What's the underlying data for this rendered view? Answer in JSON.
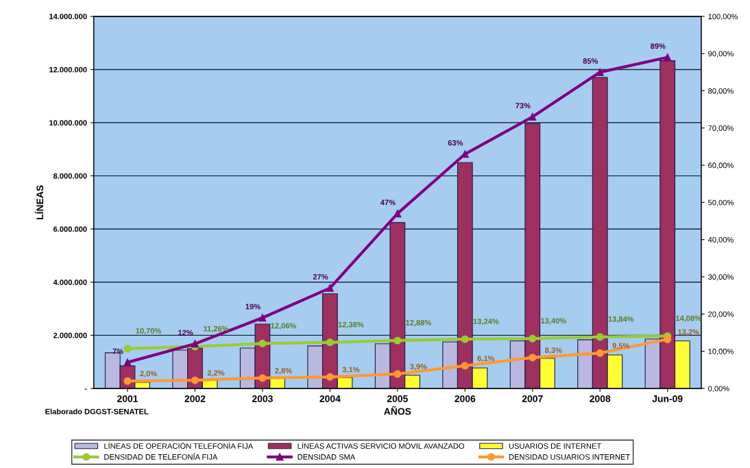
{
  "chart_data": {
    "type": "bar",
    "xlabel": "AÑOS",
    "ylabel": "LÍNEAS",
    "categories": [
      "2001",
      "2002",
      "2003",
      "2004",
      "2005",
      "2006",
      "2007",
      "2008",
      "Jun-09"
    ],
    "series": [
      {
        "name": "LÍNEAS DE OPERACIÓN TELEFONÍA FIJA",
        "color": "#b8b8e0",
        "values": [
          1340000,
          1440000,
          1520000,
          1600000,
          1680000,
          1750000,
          1790000,
          1830000,
          1860000
        ]
      },
      {
        "name": "LÍNEAS ACTIVAS SERVICIO MÓVIL AVANZADO",
        "color": "#9e3060",
        "values": [
          850000,
          1520000,
          2420000,
          3560000,
          6240000,
          8500000,
          9970000,
          11700000,
          12330000
        ]
      },
      {
        "name": "USUARIOS DE INTERNET",
        "color": "#ffff33",
        "values": [
          230000,
          310000,
          370000,
          410000,
          500000,
          770000,
          1130000,
          1260000,
          1790000
        ]
      },
      {
        "name": "DENSIDAD DE TELEFONÍA FIJA",
        "type": "line",
        "axis": "y2",
        "marker": "circle",
        "color": "#99cc33",
        "values": [
          10.7,
          11.26,
          12.06,
          12.38,
          12.88,
          13.24,
          13.4,
          13.84,
          14.08
        ],
        "value_labels": [
          "10,70%",
          "11,26%",
          "12,06%",
          "12,38%",
          "12,88%",
          "13,24%",
          "13,40%",
          "13,84%",
          "14,08%"
        ]
      },
      {
        "name": "DENSIDAD SMA",
        "type": "line",
        "axis": "y2",
        "marker": "triangle",
        "color": "#800080",
        "values": [
          7,
          12,
          19,
          27,
          47,
          63,
          73,
          85,
          89
        ],
        "value_labels": [
          "7%",
          "12%",
          "19%",
          "27%",
          "47%",
          "63%",
          "73%",
          "85%",
          "89%"
        ]
      },
      {
        "name": "DENSIDAD USUARIOS INTERNET",
        "type": "line",
        "axis": "y2",
        "marker": "circle",
        "color": "#ff9933",
        "values": [
          2.0,
          2.2,
          2.8,
          3.1,
          3.9,
          6.1,
          8.3,
          9.5,
          13.2
        ],
        "value_labels": [
          "2,0%",
          "2,2%",
          "2,8%",
          "3,1%",
          "3,9%",
          "6,1%",
          "8,3%",
          "9,5%",
          "13,2%"
        ]
      }
    ],
    "ylim": [
      0,
      14000000
    ],
    "yticks": [
      {
        "value": 0,
        "label": "-"
      },
      {
        "value": 2000000,
        "label": "2.000.000"
      },
      {
        "value": 4000000,
        "label": "4.000.000"
      },
      {
        "value": 6000000,
        "label": "6.000.000"
      },
      {
        "value": 8000000,
        "label": "8.000.000"
      },
      {
        "value": 10000000,
        "label": "10.000.000"
      },
      {
        "value": 12000000,
        "label": "12.000.000"
      },
      {
        "value": 14000000,
        "label": "14.000.000"
      }
    ],
    "y2lim": [
      0,
      100
    ],
    "y2ticks": [
      {
        "value": 0,
        "label": "0,00%"
      },
      {
        "value": 10,
        "label": "10,00%"
      },
      {
        "value": 20,
        "label": "20,00%"
      },
      {
        "value": 30,
        "label": "30,00%"
      },
      {
        "value": 40,
        "label": "40,00%"
      },
      {
        "value": 50,
        "label": "50,00%"
      },
      {
        "value": 60,
        "label": "60,00%"
      },
      {
        "value": 70,
        "label": "70,00%"
      },
      {
        "value": 80,
        "label": "80,00%"
      },
      {
        "value": 90,
        "label": "90,00%"
      },
      {
        "value": 100,
        "label": "100,00%"
      }
    ],
    "grid": "y",
    "legend": "bottom",
    "annotations": [
      "Elaborado DGGST-SENATEL"
    ]
  }
}
